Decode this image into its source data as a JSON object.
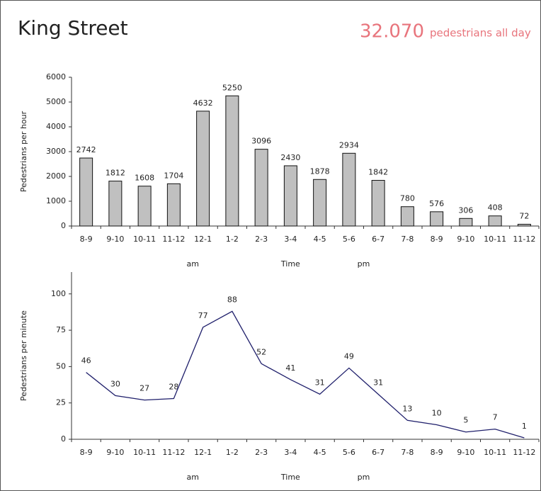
{
  "header": {
    "title": "King Street",
    "total": "32.070",
    "total_label": "pedestrians all day"
  },
  "chart_data": [
    {
      "type": "bar",
      "ylabel": "Pedestrians per hour",
      "xlabel": "Time",
      "annotations": [
        "am",
        "pm"
      ],
      "categories": [
        "8-9",
        "9-10",
        "10-11",
        "11-12",
        "12-1",
        "1-2",
        "2-3",
        "3-4",
        "4-5",
        "5-6",
        "6-7",
        "7-8",
        "8-9",
        "9-10",
        "10-11",
        "11-12"
      ],
      "values": [
        2742,
        1812,
        1608,
        1704,
        4632,
        5250,
        3096,
        2430,
        1878,
        2934,
        1842,
        780,
        576,
        306,
        408,
        72
      ],
      "color": "#c0c0c0",
      "ylim": [
        0,
        6000
      ],
      "yticks": [
        0,
        1000,
        2000,
        3000,
        4000,
        5000,
        6000
      ]
    },
    {
      "type": "line",
      "ylabel": "Pedestrians per minute",
      "xlabel": "Time",
      "annotations": [
        "am",
        "pm"
      ],
      "categories": [
        "8-9",
        "9-10",
        "10-11",
        "11-12",
        "12-1",
        "1-2",
        "2-3",
        "3-4",
        "4-5",
        "5-6",
        "6-7",
        "7-8",
        "8-9",
        "9-10",
        "10-11",
        "11-12"
      ],
      "values": [
        46,
        30,
        27,
        28,
        77,
        88,
        52,
        41,
        31,
        49,
        31,
        13,
        10,
        5,
        7,
        1
      ],
      "color": "#1f1f6b",
      "ylim": [
        0,
        115
      ],
      "yticks": [
        0,
        25,
        50,
        75,
        100
      ]
    }
  ]
}
